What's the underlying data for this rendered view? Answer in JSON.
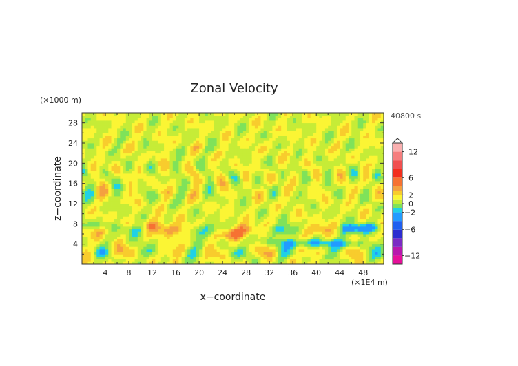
{
  "chart_data": {
    "type": "heatmap",
    "title": "Zonal Velocity",
    "xlabel": "x−coordinate",
    "ylabel": "z−coordinate",
    "x_unit": "(×1E4 m)",
    "y_unit": "(×1000 m)",
    "time_label": "40800 s",
    "xlim": [
      0,
      51.5
    ],
    "ylim": [
      0,
      30
    ],
    "x_ticks": [
      4,
      8,
      12,
      16,
      20,
      24,
      28,
      32,
      36,
      40,
      44,
      48
    ],
    "y_ticks": [
      4,
      8,
      12,
      16,
      20,
      24,
      28
    ],
    "colorbar": {
      "min": -14,
      "max": 14,
      "ticks": [
        12,
        6,
        2,
        0,
        -2,
        -6,
        -12
      ],
      "levels": [
        {
          "lo": -14,
          "hi": -12,
          "color": "#e60f9a"
        },
        {
          "lo": -12,
          "hi": -10,
          "color": "#b817ad"
        },
        {
          "lo": -10,
          "hi": -8,
          "color": "#7a2bc4"
        },
        {
          "lo": -8,
          "hi": -6,
          "color": "#2c2cd0"
        },
        {
          "lo": -6,
          "hi": -4,
          "color": "#1f5ff0"
        },
        {
          "lo": -4,
          "hi": -2,
          "color": "#229bff"
        },
        {
          "lo": -2,
          "hi": -1,
          "color": "#1fd1e6"
        },
        {
          "lo": -1,
          "hi": 0,
          "color": "#7fe25a"
        },
        {
          "lo": 0,
          "hi": 1,
          "color": "#c6ec37"
        },
        {
          "lo": 1,
          "hi": 2,
          "color": "#fbf534"
        },
        {
          "lo": 2,
          "hi": 3,
          "color": "#f8cc2d"
        },
        {
          "lo": 3,
          "hi": 4,
          "color": "#f4a140"
        },
        {
          "lo": 4,
          "hi": 6,
          "color": "#f67232"
        },
        {
          "lo": 6,
          "hi": 8,
          "color": "#f22f1e"
        },
        {
          "lo": 8,
          "hi": 10,
          "color": "#f05050"
        },
        {
          "lo": 10,
          "hi": 12,
          "color": "#f67e7e"
        },
        {
          "lo": 12,
          "hi": 14,
          "color": "#fbb0b0"
        }
      ]
    }
  }
}
